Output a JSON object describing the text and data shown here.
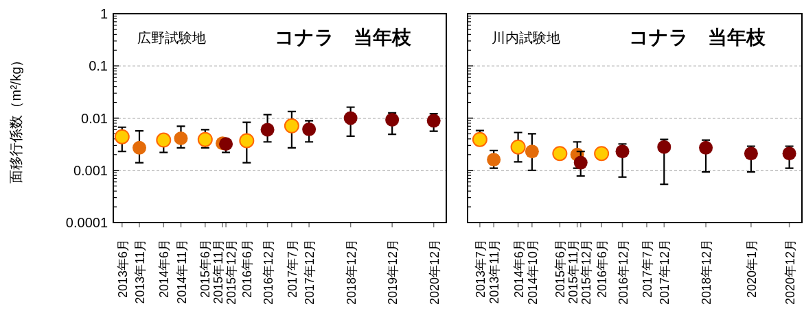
{
  "chart_data": [
    {
      "type": "scatter",
      "title": "コナラ　当年枝",
      "subtitle": "広野試験地",
      "ylabel": "面移行係数（m²/kg）",
      "log": "y",
      "grid": "y",
      "marker": "circle",
      "xlim": [
        "2013-03-15",
        "2021-03-20"
      ],
      "ylim": [
        0.0001,
        1
      ],
      "yticks": [
        {
          "value": 0.0001,
          "label": "0.0001"
        },
        {
          "value": 0.001,
          "label": "0.001"
        },
        {
          "value": 0.01,
          "label": "0.01"
        },
        {
          "value": 0.1,
          "label": "0.1"
        },
        1
      ],
      "xticks": [
        {
          "value": "2013-06",
          "label": "2013年6月"
        },
        {
          "value": "2013-11",
          "label": "2013年11月"
        },
        {
          "value": "2014-06",
          "label": "2014年6月"
        },
        {
          "value": "2014-11",
          "label": "2014年11月"
        },
        {
          "value": "2015-06",
          "label": "2015年6月"
        },
        {
          "value": "2015-11",
          "label": "2015年11月"
        },
        {
          "value": "2015-12",
          "label": "2015年12月"
        },
        {
          "value": "2016-06",
          "label": "2016年6月"
        },
        {
          "value": "2016-12",
          "label": "2016年12月"
        },
        {
          "value": "2017-07",
          "label": "2017年7月"
        },
        {
          "value": "2017-12",
          "label": "2017年12月"
        },
        {
          "value": "2018-12",
          "label": "2018年12月"
        },
        {
          "value": "2019-12",
          "label": "2019年12月"
        },
        {
          "value": "2020-12",
          "label": "2020年12月"
        }
      ],
      "series": [
        {
          "color": "#ffcc00",
          "x": [
            "2013-06",
            "2014-06",
            "2015-06",
            "2016-06",
            "2017-07"
          ],
          "values": [
            0.0044,
            0.0038,
            0.0039,
            0.0037,
            0.0071
          ],
          "errors": [
            [
              0.0023,
              0.0067
            ],
            [
              0.0022,
              0.0038
            ],
            [
              0.0027,
              0.006
            ],
            [
              0.0014,
              0.0083
            ],
            [
              0.0027,
              0.0134
            ]
          ]
        },
        {
          "color": "#e46c0a",
          "x": [
            "2013-11",
            "2014-11",
            "2015-11"
          ],
          "values": [
            0.0027,
            0.0041,
            0.0033
          ],
          "errors": [
            [
              0.0014,
              0.0057
            ],
            [
              0.0027,
              0.007
            ],
            null
          ]
        },
        {
          "color": "#800000",
          "x": [
            "2015-12",
            "2016-12",
            "2017-12",
            "2018-12",
            "2019-12",
            "2020-12"
          ],
          "values": [
            0.0032,
            0.006,
            0.0061,
            0.01,
            0.0093,
            0.0089
          ],
          "errors": [
            [
              0.0022,
              0.0032
            ],
            [
              0.0035,
              0.0117
            ],
            [
              0.0035,
              0.0089
            ],
            [
              0.0045,
              0.0162
            ],
            [
              0.0049,
              0.0126
            ],
            [
              0.0056,
              0.0121
            ]
          ]
        }
      ]
    },
    {
      "type": "scatter",
      "title": "コナラ　当年枝",
      "subtitle": "川内試験地",
      "log": "y",
      "grid": "y",
      "marker": "circle",
      "tick_labels": "x",
      "xlim": [
        "2013-03-15",
        "2021-03-20"
      ],
      "ylim": [
        0.0001,
        1
      ],
      "yticks": [
        0.0001,
        0.001,
        0.01,
        0.1,
        1
      ],
      "xticks": [
        {
          "value": "2013-07",
          "label": "2013年7月"
        },
        {
          "value": "2013-11",
          "label": "2013年11月"
        },
        {
          "value": "2014-06",
          "label": "2014年6月"
        },
        {
          "value": "2014-10",
          "label": "2014年10月"
        },
        {
          "value": "2015-06",
          "label": "2015年6月"
        },
        {
          "value": "2015-11",
          "label": "2015年11月"
        },
        {
          "value": "2015-12",
          "label": "2015年12月"
        },
        {
          "value": "2016-06",
          "label": "2016年6月"
        },
        {
          "value": "2016-12",
          "label": "2016年12月"
        },
        {
          "value": "2017-07",
          "label": "2017年7月"
        },
        {
          "value": "2017-12",
          "label": "2017年12月"
        },
        {
          "value": "2018-12",
          "label": "2018年12月"
        },
        {
          "value": "2020-01",
          "label": "2020年1月"
        },
        {
          "value": "2020-12",
          "label": "2020年12月"
        }
      ],
      "series": [
        {
          "color": "#ffcc00",
          "x": [
            "2013-07",
            "2014-06",
            "2015-06",
            "2016-06"
          ],
          "values": [
            0.0039,
            0.0028,
            0.0021,
            0.0021
          ],
          "errors": [
            [
              0.0039,
              0.0058
            ],
            [
              0.00145,
              0.0053
            ],
            null,
            null
          ]
        },
        {
          "color": "#e46c0a",
          "x": [
            "2013-11",
            "2014-10",
            "2015-11"
          ],
          "values": [
            0.0016,
            0.0023,
            0.002
          ],
          "errors": [
            [
              0.0011,
              0.0024
            ],
            [
              0.001,
              0.005
            ],
            [
              0.0011,
              0.0035
            ]
          ]
        },
        {
          "color": "#800000",
          "x": [
            "2015-12",
            "2016-12",
            "2017-12",
            "2018-12",
            "2020-01",
            "2020-12"
          ],
          "values": [
            0.0014,
            0.0023,
            0.0028,
            0.0027,
            0.0021,
            0.0021
          ],
          "errors": [
            [
              0.00078,
              0.0023
            ],
            [
              0.00074,
              0.0032
            ],
            [
              0.00054,
              0.0039
            ],
            [
              0.00093,
              0.0038
            ],
            [
              0.00093,
              0.0029
            ],
            [
              0.0011,
              0.0029
            ]
          ]
        }
      ]
    }
  ]
}
